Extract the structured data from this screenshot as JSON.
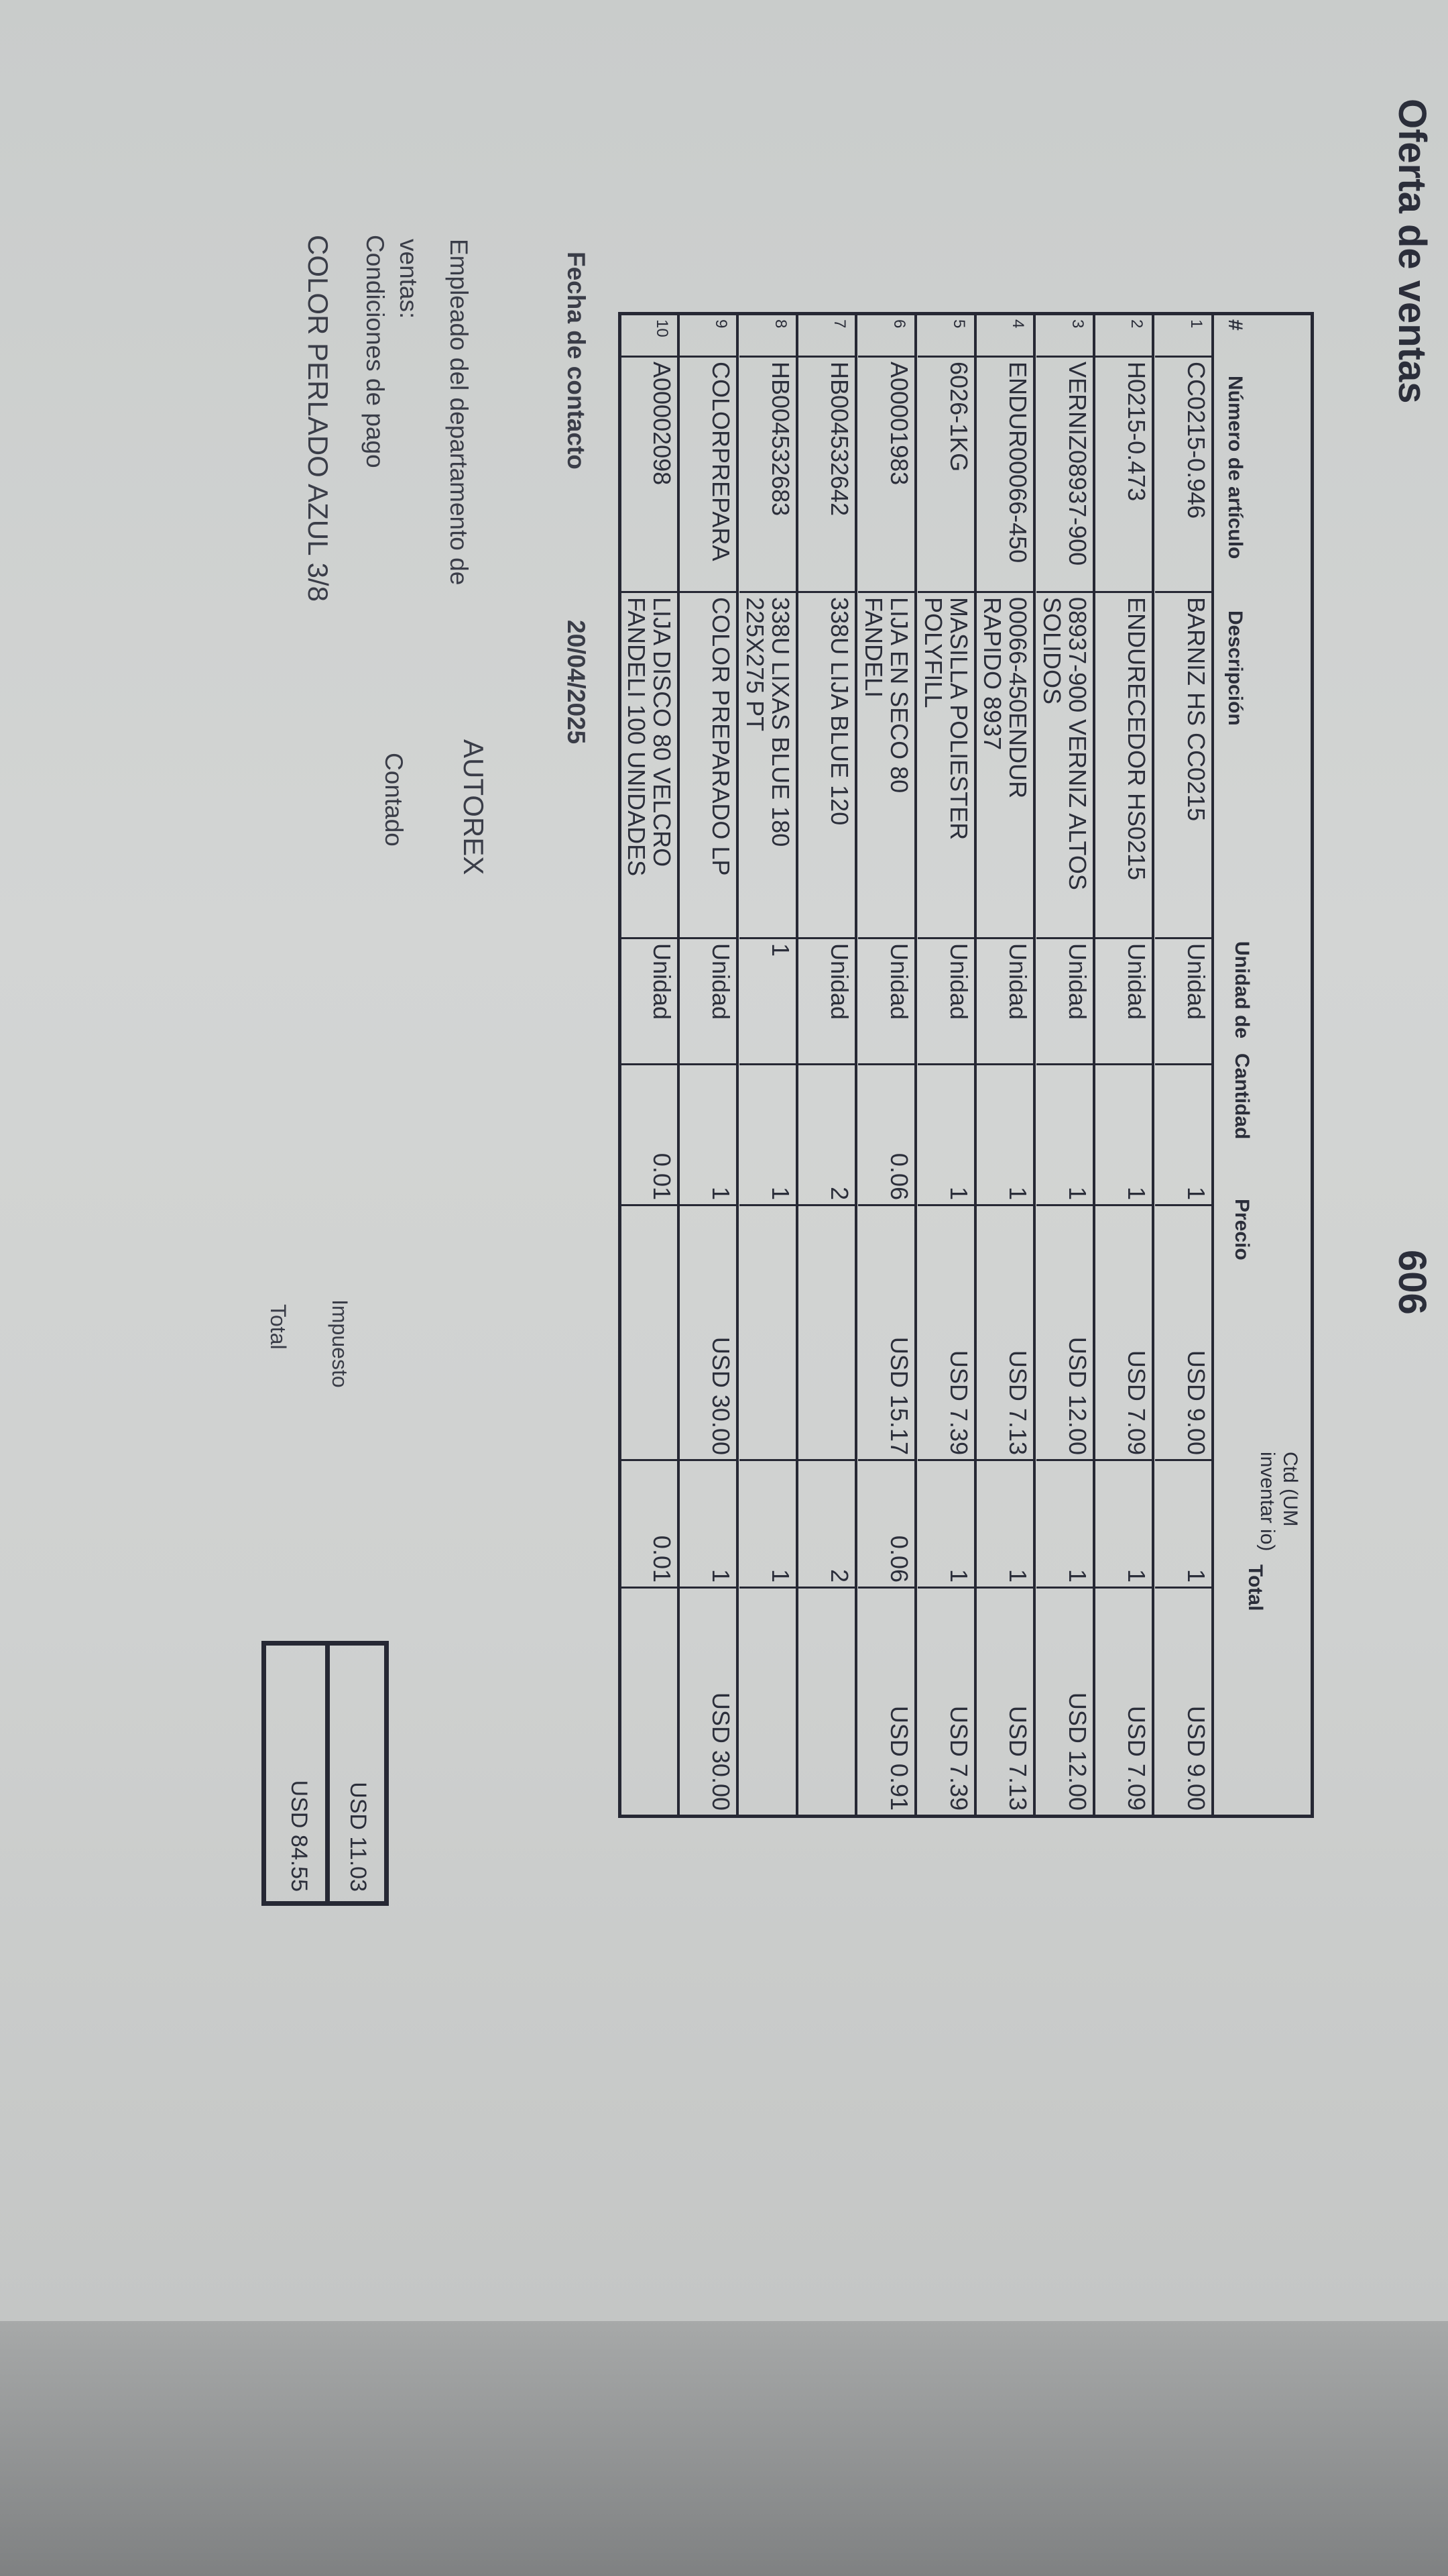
{
  "header": {
    "title": "Oferta de ventas",
    "number": "606"
  },
  "table": {
    "columns": [
      "#",
      "Número de artículo",
      "Descripción",
      "Unidad de",
      "Cantidad",
      "Precio",
      "Ctd (UM inventar io)",
      "Total"
    ],
    "rows": [
      {
        "n": "1",
        "item": "CC0215-0.946",
        "desc": [
          "BARNIZ HS CC0215"
        ],
        "unit": "Unidad",
        "qty": "1",
        "price": "USD 9.00",
        "ctd": "1",
        "total": "USD 9.00"
      },
      {
        "n": "2",
        "item": "H0215-0.473",
        "desc": [
          "ENDURECEDOR HS0215"
        ],
        "unit": "Unidad",
        "qty": "1",
        "price": "USD 7.09",
        "ctd": "1",
        "total": "USD 7.09"
      },
      {
        "n": "3",
        "item": "VERNIZ08937-900",
        "desc": [
          "08937-900 VERNIZ ALTOS",
          "SOLIDOS"
        ],
        "unit": "Unidad",
        "qty": "1",
        "price": "USD 12.00",
        "ctd": "1",
        "total": "USD 12.00"
      },
      {
        "n": "4",
        "item": "ENDUR00066-450",
        "desc": [
          "00066-450ENDUR",
          "RAPIDO 8937"
        ],
        "unit": "Unidad",
        "qty": "1",
        "price": "USD 7.13",
        "ctd": "1",
        "total": "USD 7.13"
      },
      {
        "n": "5",
        "item": "6026-1KG",
        "desc": [
          "MASILLA POLIESTER",
          "POLYFILL"
        ],
        "unit": "Unidad",
        "qty": "1",
        "price": "USD 7.39",
        "ctd": "1",
        "total": "USD 7.39"
      },
      {
        "n": "6",
        "item": "A00001983",
        "desc": [
          "LIJA EN SECO 80",
          "FANDELI"
        ],
        "unit": "Unidad",
        "qty": "0.06",
        "price": "USD 15.17",
        "ctd": "0.06",
        "total": "USD 0.91"
      },
      {
        "n": "7",
        "item": "HB004532642",
        "desc": [
          "338U LIJA BLUE 120"
        ],
        "unit": "Unidad",
        "qty": "2",
        "price": "",
        "ctd": "2",
        "total": ""
      },
      {
        "n": "8",
        "item": "HB004532683",
        "desc": [
          "338U LIXAS BLUE 180",
          "225X275 PT"
        ],
        "unit": "1",
        "qty": "1",
        "price": "",
        "ctd": "1",
        "total": ""
      },
      {
        "n": "9",
        "item": "COLORPREPARA",
        "desc": [
          "COLOR PREPARADO LP"
        ],
        "unit": "Unidad",
        "qty": "1",
        "price": "USD 30.00",
        "ctd": "1",
        "total": "USD 30.00"
      },
      {
        "n": "10",
        "item": "A00002098",
        "desc": [
          "LIJA DISCO 80 VELCRO",
          "FANDELI 100 UNIDADES"
        ],
        "unit": "Unidad",
        "qty": "0.01",
        "price": "",
        "ctd": "0.01",
        "total": ""
      }
    ]
  },
  "footer": {
    "contact_date_label": "Fecha de contacto",
    "contact_date": "20/04/2025",
    "employee_label_1": "Empleado del departamento de",
    "employee_label_2": "ventas:",
    "employee": "AUTOREX",
    "payment_label": "Condiciones de pago",
    "payment": "Contado",
    "note": "COLOR PERLADO AZUL 3/8",
    "tax_label": "Impuesto",
    "tax": "USD 11.03",
    "total_label": "Total",
    "total": "USD 84.55"
  }
}
